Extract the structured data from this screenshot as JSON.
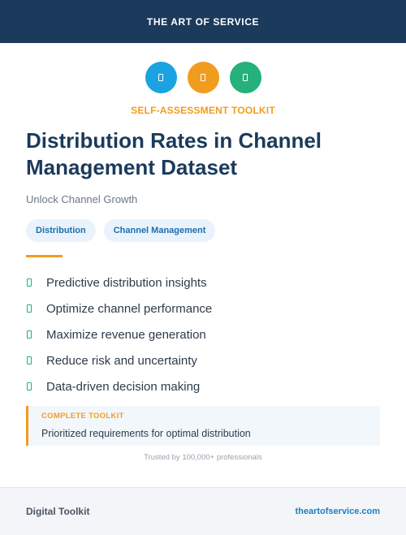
{
  "header": {
    "brand": "THE ART OF SERVICE"
  },
  "icons": [
    {
      "name": "document-icon",
      "color": "#1aa3e0"
    },
    {
      "name": "document-icon",
      "color": "#f29c1f"
    },
    {
      "name": "document-icon",
      "color": "#25b07c"
    }
  ],
  "kicker": "SELF-ASSESSMENT TOOLKIT",
  "title": "Distribution Rates in Channel Management Dataset",
  "subtitle": "Unlock Channel Growth",
  "tags": [
    "Distribution",
    "Channel Management"
  ],
  "features": [
    "Predictive distribution insights",
    "Optimize channel performance",
    "Maximize revenue generation",
    "Reduce risk and uncertainty",
    "Data-driven decision making"
  ],
  "callout": {
    "kicker": "COMPLETE TOOLKIT",
    "text": "Prioritized requirements for optimal distribution"
  },
  "trusted": "Trusted by 100,000+ professionals",
  "footer": {
    "left": "Digital Toolkit",
    "right": "theartofservice.com"
  },
  "colors": {
    "navy": "#1b3a5c",
    "orange": "#f29c1f",
    "green": "#25b07c",
    "blue": "#1aa3e0"
  }
}
